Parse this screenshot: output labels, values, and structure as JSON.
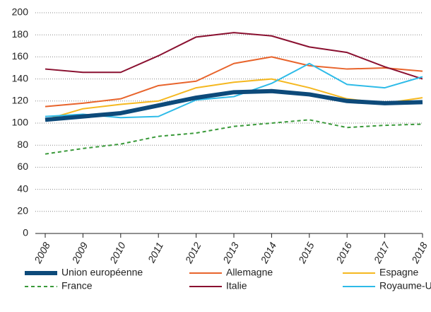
{
  "chart_data": {
    "type": "line",
    "categories": [
      "2008",
      "2009",
      "2010",
      "2011",
      "2012",
      "2013",
      "2014",
      "2015",
      "2016",
      "2017",
      "2018"
    ],
    "ylim": [
      0,
      200
    ],
    "yticks": [
      0,
      20,
      40,
      60,
      80,
      100,
      120,
      140,
      160,
      180,
      200
    ],
    "grid": true,
    "series": [
      {
        "name": "Union européenne",
        "color": "#0d4a7a",
        "linewidth": 6,
        "dashed": false,
        "values": [
          103,
          106,
          109,
          116,
          123,
          128,
          129,
          126,
          120,
          118,
          119
        ]
      },
      {
        "name": "Allemagne",
        "color": "#e8642c",
        "linewidth": 2,
        "dashed": false,
        "values": [
          115,
          118,
          122,
          134,
          138,
          154,
          160,
          152,
          149,
          150,
          147
        ]
      },
      {
        "name": "Espagne",
        "color": "#f5b820",
        "linewidth": 2,
        "dashed": false,
        "values": [
          103,
          113,
          117,
          120,
          132,
          137,
          140,
          132,
          122,
          118,
          123
        ]
      },
      {
        "name": "France",
        "color": "#3a9a3a",
        "linewidth": 2,
        "dashed": true,
        "values": [
          72,
          77,
          81,
          88,
          91,
          97,
          100,
          103,
          96,
          98,
          99
        ]
      },
      {
        "name": "Italie",
        "color": "#8a1030",
        "linewidth": 2,
        "dashed": false,
        "values": [
          149,
          146,
          146,
          161,
          178,
          182,
          179,
          169,
          164,
          151,
          140
        ]
      },
      {
        "name": "Royaume-Uni",
        "color": "#2ebbe8",
        "linewidth": 2,
        "dashed": false,
        "values": [
          106,
          108,
          105,
          106,
          121,
          124,
          136,
          154,
          135,
          132,
          142
        ]
      }
    ]
  }
}
